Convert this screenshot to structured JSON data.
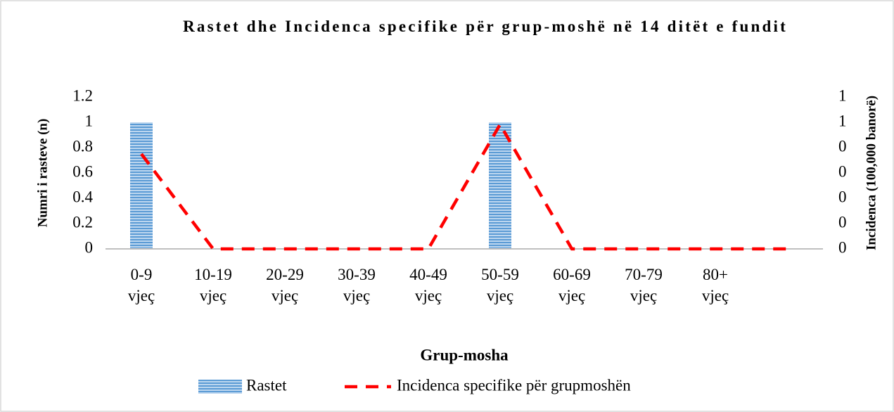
{
  "chart_data": {
    "type": "bar-line",
    "title": "Rastet dhe Incidenca specifike për grup-moshë në 14 ditët e fundit",
    "xlabel": "Grup-mosha",
    "ylabel": "Numri i rasteve (n)",
    "y2label": "Incidenca (100,000 banorë)",
    "categories": [
      "0-9 vjeç",
      "10-19 vjeç",
      "20-29 vjeç",
      "30-39 vjeç",
      "40-49 vjeç",
      "50-59 vjeç",
      "60-69 vjeç",
      "70-79 vjeç",
      "80+ vjeç",
      null
    ],
    "series": [
      {
        "name": "Rastet",
        "type": "bar",
        "color": "#5b9bd5",
        "values": [
          1,
          0,
          0,
          0,
          0,
          1,
          0,
          0,
          0,
          0
        ]
      },
      {
        "name": "Incidenca specifike për grupmoshën",
        "type": "line",
        "axis": "y2",
        "color": "#ff0000",
        "values": [
          0.45,
          0,
          0,
          0,
          0,
          0.59,
          0,
          0,
          0,
          0
        ]
      }
    ],
    "ylim": [
      0,
      1.2
    ],
    "yticks": [
      0,
      0.2,
      0.4,
      0.6,
      0.8,
      1,
      1.2
    ],
    "y2lim": [
      0,
      0.72
    ],
    "y2ticks": [
      0,
      {
        "value": 0.12,
        "label": "0"
      },
      {
        "value": 0.24,
        "label": "0"
      },
      {
        "value": 0.36,
        "label": "0"
      },
      {
        "value": 0.48,
        "label": "0"
      },
      {
        "value": 0.6,
        "label": "1"
      },
      {
        "value": 0.72,
        "label": "1"
      }
    ],
    "legend": "bottom"
  }
}
